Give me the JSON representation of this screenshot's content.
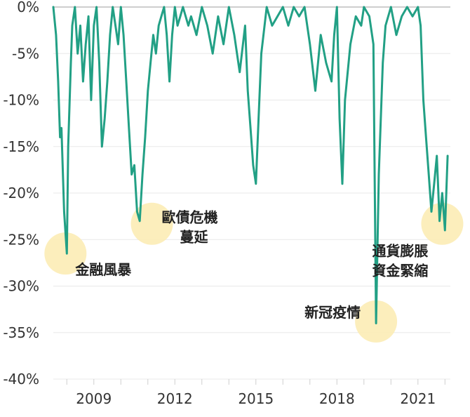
{
  "chart_data": {
    "type": "line",
    "title": "",
    "xlabel": "",
    "ylabel": "",
    "ylim": [
      -40,
      0
    ],
    "xlim": [
      2007.5,
      2022.2
    ],
    "yticks": [
      0,
      -5,
      -10,
      -15,
      -20,
      -25,
      -30,
      -35,
      -40
    ],
    "ytick_labels": [
      "0%",
      "-5%",
      "-10%",
      "-15%",
      "-20%",
      "-25%",
      "-30%",
      "-35%",
      "-40%"
    ],
    "xticks": [
      2009,
      2012,
      2015,
      2018,
      2021
    ],
    "xtick_labels": [
      "2009",
      "2012",
      "2015",
      "2018",
      "2021"
    ],
    "grid": true,
    "series": [
      {
        "color": "#22a085",
        "x": [
          2007.5,
          2007.6,
          2007.68,
          2007.75,
          2007.8,
          2007.9,
          2008.0,
          2008.05,
          2008.15,
          2008.2,
          2008.3,
          2008.4,
          2008.5,
          2008.6,
          2008.7,
          2008.8,
          2008.9,
          2009.0,
          2009.1,
          2009.2,
          2009.3,
          2009.4,
          2009.5,
          2009.6,
          2009.7,
          2009.8,
          2009.9,
          2010.0,
          2010.1,
          2010.2,
          2010.3,
          2010.4,
          2010.5,
          2010.6,
          2010.7,
          2010.8,
          2010.9,
          2011.0,
          2011.1,
          2011.2,
          2011.3,
          2011.4,
          2011.5,
          2011.6,
          2011.7,
          2011.8,
          2011.9,
          2012.0,
          2012.1,
          2012.2,
          2012.3,
          2012.5,
          2012.6,
          2012.8,
          2013.0,
          2013.2,
          2013.4,
          2013.6,
          2013.8,
          2014.0,
          2014.2,
          2014.4,
          2014.6,
          2014.7,
          2014.8,
          2014.9,
          2015.0,
          2015.1,
          2015.2,
          2015.4,
          2015.6,
          2015.8,
          2016.0,
          2016.2,
          2016.4,
          2016.6,
          2016.8,
          2017.0,
          2017.2,
          2017.4,
          2017.6,
          2017.8,
          2017.9,
          2018.0,
          2018.1,
          2018.2,
          2018.3,
          2018.5,
          2018.7,
          2018.9,
          2019.0,
          2019.2,
          2019.35,
          2019.45,
          2019.55,
          2019.7,
          2019.8,
          2020.0,
          2020.2,
          2020.4,
          2020.6,
          2020.8,
          2021.0,
          2021.1,
          2021.2,
          2021.3,
          2021.4,
          2021.5,
          2021.6,
          2021.7,
          2021.8,
          2021.9,
          2022.0,
          2022.1
        ],
        "values": [
          0,
          -3,
          -8,
          -14,
          -13,
          -22,
          -26.5,
          -15,
          -6,
          -2,
          0,
          -5,
          -2,
          -8,
          -4,
          -1,
          -10,
          -2,
          0,
          -6,
          -15,
          -12,
          -8,
          -3,
          0,
          -2,
          -4,
          0,
          -3,
          -8,
          -13,
          -18,
          -17,
          -22,
          -23,
          -18,
          -14,
          -9,
          -6,
          -3,
          -5,
          -2,
          -1,
          0,
          -3,
          -8,
          -3,
          0,
          -2,
          -1,
          0,
          -2,
          -1,
          -3,
          0,
          -2,
          -5,
          -1,
          -4,
          0,
          -3,
          -7,
          -2,
          -9,
          -13,
          -17,
          -19,
          -12,
          -5,
          0,
          -2,
          -1,
          0,
          -2,
          0,
          -1,
          0,
          -4,
          -9,
          -3,
          -6,
          -8,
          -3,
          0,
          -12,
          -19,
          -10,
          -4,
          -1,
          -2,
          0,
          -1,
          -4,
          -34,
          -18,
          -6,
          -2,
          0,
          -3,
          -1,
          0,
          -1,
          0,
          -2,
          -10,
          -14,
          -18,
          -22,
          -19,
          -16,
          -23,
          -20,
          -24,
          -16
        ]
      }
    ],
    "annotations": [
      {
        "lines": [
          "金融風暴"
        ],
        "x": 2007.95,
        "y": -26.5
      },
      {
        "lines": [
          "歐債危機",
          "蔓延"
        ],
        "x": 2011.15,
        "y": -23.3
      },
      {
        "lines": [
          "新冠疫情"
        ],
        "x": 2019.45,
        "y": -33.8
      },
      {
        "lines": [
          "通貨膨脹",
          "資金緊縮"
        ],
        "x": 2021.9,
        "y": -23.3
      }
    ],
    "highlight_color": "#fcebb0",
    "grid_color": "#e8e8e8",
    "zero_line_color": "#bdbdbd"
  }
}
